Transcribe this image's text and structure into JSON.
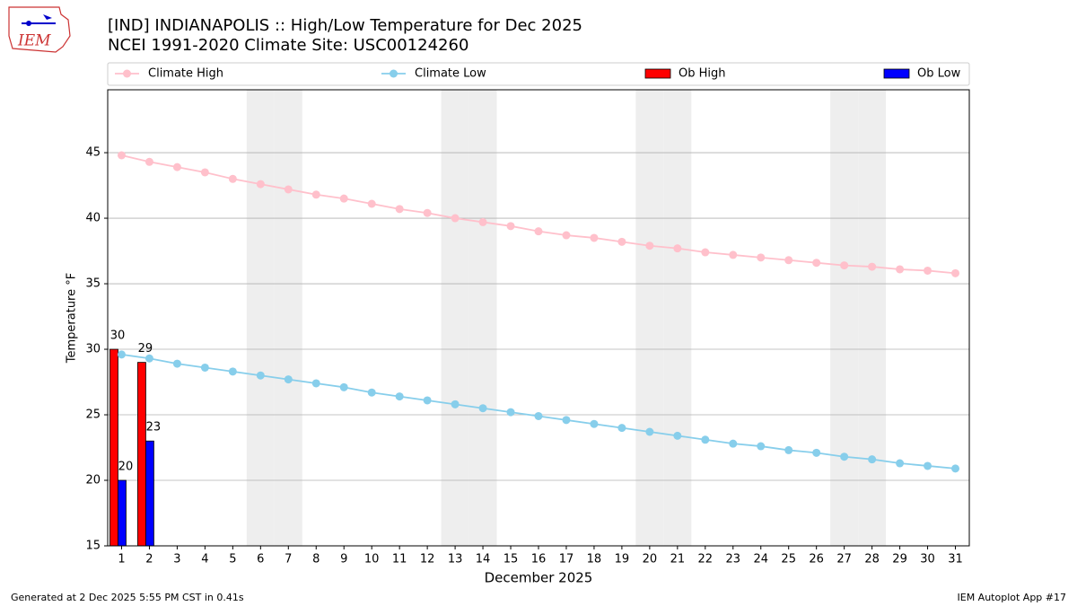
{
  "chart_data": {
    "type": "line",
    "title": "[IND] INDIANAPOLIS :: High/Low Temperature for Dec 2025",
    "subtitle": "NCEI 1991-2020 Climate Site: USC00124260",
    "x_label": "December 2025",
    "y_label": "Temperature °F",
    "logo_text": "IEM",
    "footer_left": "Generated at 2 Dec 2025 5:55 PM CST in 0.41s",
    "footer_right": "IEM Autoplot App #17",
    "x": [
      1,
      2,
      3,
      4,
      5,
      6,
      7,
      8,
      9,
      10,
      11,
      12,
      13,
      14,
      15,
      16,
      17,
      18,
      19,
      20,
      21,
      22,
      23,
      24,
      25,
      26,
      27,
      28,
      29,
      30,
      31
    ],
    "xlim": [
      0.5,
      31.5
    ],
    "ylim": [
      15,
      49.8
    ],
    "yticks": [
      15,
      20,
      25,
      30,
      35,
      40,
      45
    ],
    "grid": true,
    "legend": "top",
    "shaded_days": [
      6,
      7,
      13,
      14,
      20,
      21,
      27,
      28
    ],
    "series": [
      {
        "name": "Climate High",
        "type": "line",
        "color": "#ffc0cb",
        "values": [
          44.8,
          44.3,
          43.9,
          43.5,
          43.0,
          42.6,
          42.2,
          41.8,
          41.5,
          41.1,
          40.7,
          40.4,
          40.0,
          39.7,
          39.4,
          39.0,
          38.7,
          38.5,
          38.2,
          37.9,
          37.7,
          37.4,
          37.2,
          37.0,
          36.8,
          36.6,
          36.4,
          36.3,
          36.1,
          36.0,
          35.8
        ]
      },
      {
        "name": "Climate Low",
        "type": "line",
        "color": "#87ceeb",
        "values": [
          29.6,
          29.3,
          28.9,
          28.6,
          28.3,
          28.0,
          27.7,
          27.4,
          27.1,
          26.7,
          26.4,
          26.1,
          25.8,
          25.5,
          25.2,
          24.9,
          24.6,
          24.3,
          24.0,
          23.7,
          23.4,
          23.1,
          22.8,
          22.6,
          22.3,
          22.1,
          21.8,
          21.6,
          21.3,
          21.1,
          20.9
        ]
      },
      {
        "name": "Ob High",
        "type": "bar",
        "color": "#ff0000",
        "values": [
          30,
          29,
          null,
          null,
          null,
          null,
          null,
          null,
          null,
          null,
          null,
          null,
          null,
          null,
          null,
          null,
          null,
          null,
          null,
          null,
          null,
          null,
          null,
          null,
          null,
          null,
          null,
          null,
          null,
          null,
          null
        ]
      },
      {
        "name": "Ob Low",
        "type": "bar",
        "color": "#0000ff",
        "values": [
          20,
          23,
          null,
          null,
          null,
          null,
          null,
          null,
          null,
          null,
          null,
          null,
          null,
          null,
          null,
          null,
          null,
          null,
          null,
          null,
          null,
          null,
          null,
          null,
          null,
          null,
          null,
          null,
          null,
          null,
          null
        ]
      }
    ]
  }
}
